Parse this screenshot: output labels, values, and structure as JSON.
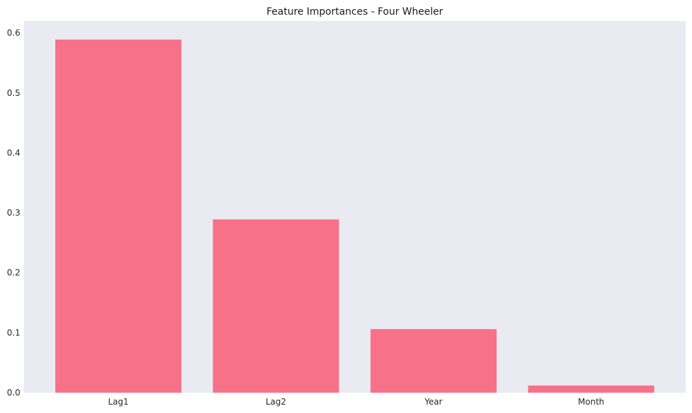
{
  "chart_data": {
    "type": "bar",
    "title": "Feature Importances - Four Wheeler",
    "xlabel": "",
    "ylabel": "",
    "categories": [
      "Lag1",
      "Lag2",
      "Year",
      "Month"
    ],
    "values": [
      0.589,
      0.289,
      0.106,
      0.012
    ],
    "ylim": [
      0,
      0.62
    ],
    "yticks": [
      0.0,
      0.1,
      0.2,
      0.3,
      0.4,
      0.5,
      0.6
    ],
    "ytick_labels": [
      "0.0",
      "0.1",
      "0.2",
      "0.3",
      "0.4",
      "0.5",
      "0.6"
    ],
    "grid": false,
    "legend": "none",
    "colors": {
      "bar": "#f77189",
      "plot_background": "#eaeaf2",
      "figure_background": "#ffffff"
    }
  }
}
